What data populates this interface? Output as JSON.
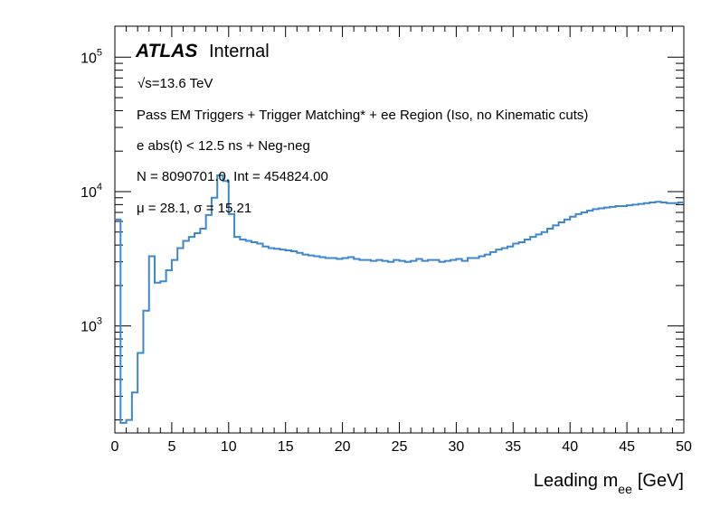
{
  "chart_data": {
    "type": "line",
    "style": "step-histogram",
    "y_scale": "log",
    "title": "",
    "xlabel": "Leading m",
    "xlabel_sub": "ee",
    "xlabel_unit": "[GeV]",
    "ylabel": "",
    "xlim": [
      0,
      50
    ],
    "ylim": [
      160,
      170000
    ],
    "x_major_ticks": [
      0,
      5,
      10,
      15,
      20,
      25,
      30,
      35,
      40,
      45,
      50
    ],
    "x_tick_labels": [
      "0",
      "5",
      "10",
      "15",
      "20",
      "25",
      "30",
      "35",
      "40",
      "45",
      "50"
    ],
    "y_major_ticks": [
      {
        "value": 1000,
        "base": "10",
        "exp": "3"
      },
      {
        "value": 10000,
        "base": "10",
        "exp": "4"
      },
      {
        "value": 100000,
        "base": "10",
        "exp": "5"
      }
    ],
    "bin_width": 0.5,
    "line_color": "#3d87cf",
    "bin_edges_start": 0,
    "values": [
      6200,
      190,
      200,
      320,
      630,
      1300,
      3300,
      2100,
      2150,
      2600,
      3100,
      3800,
      4300,
      4600,
      4900,
      5300,
      6700,
      9000,
      13200,
      12000,
      6800,
      4600,
      4400,
      4300,
      4200,
      4100,
      3900,
      3800,
      3750,
      3700,
      3650,
      3600,
      3500,
      3400,
      3350,
      3300,
      3250,
      3200,
      3200,
      3150,
      3200,
      3250,
      3150,
      3100,
      3100,
      3050,
      3100,
      3050,
      3000,
      3100,
      3050,
      3000,
      3050,
      3150,
      3050,
      3100,
      3100,
      3000,
      3050,
      3100,
      3150,
      3050,
      3200,
      3200,
      3300,
      3400,
      3550,
      3700,
      3800,
      3900,
      4100,
      4200,
      4400,
      4600,
      4800,
      5000,
      5300,
      5600,
      5900,
      6200,
      6500,
      6800,
      7000,
      7200,
      7400,
      7500,
      7600,
      7700,
      7800,
      7800,
      7900,
      8000,
      8100,
      8200,
      8300,
      8400,
      8300,
      8200,
      8200,
      8300
    ],
    "annotations": {
      "atlas": "ATLAS",
      "internal": "Internal",
      "energy": "√s=13.6 TeV",
      "selection": "Pass EM Triggers + Trigger Matching* + ee Region (Iso, no Kinematic cuts)",
      "cut": "e abs(t) < 12.5 ns + Neg-neg",
      "stats": "N = 8090701.0, Int  = 454824.00",
      "moments": "μ = 28.1, σ = 15.21"
    },
    "legend": "none",
    "grid": false
  }
}
